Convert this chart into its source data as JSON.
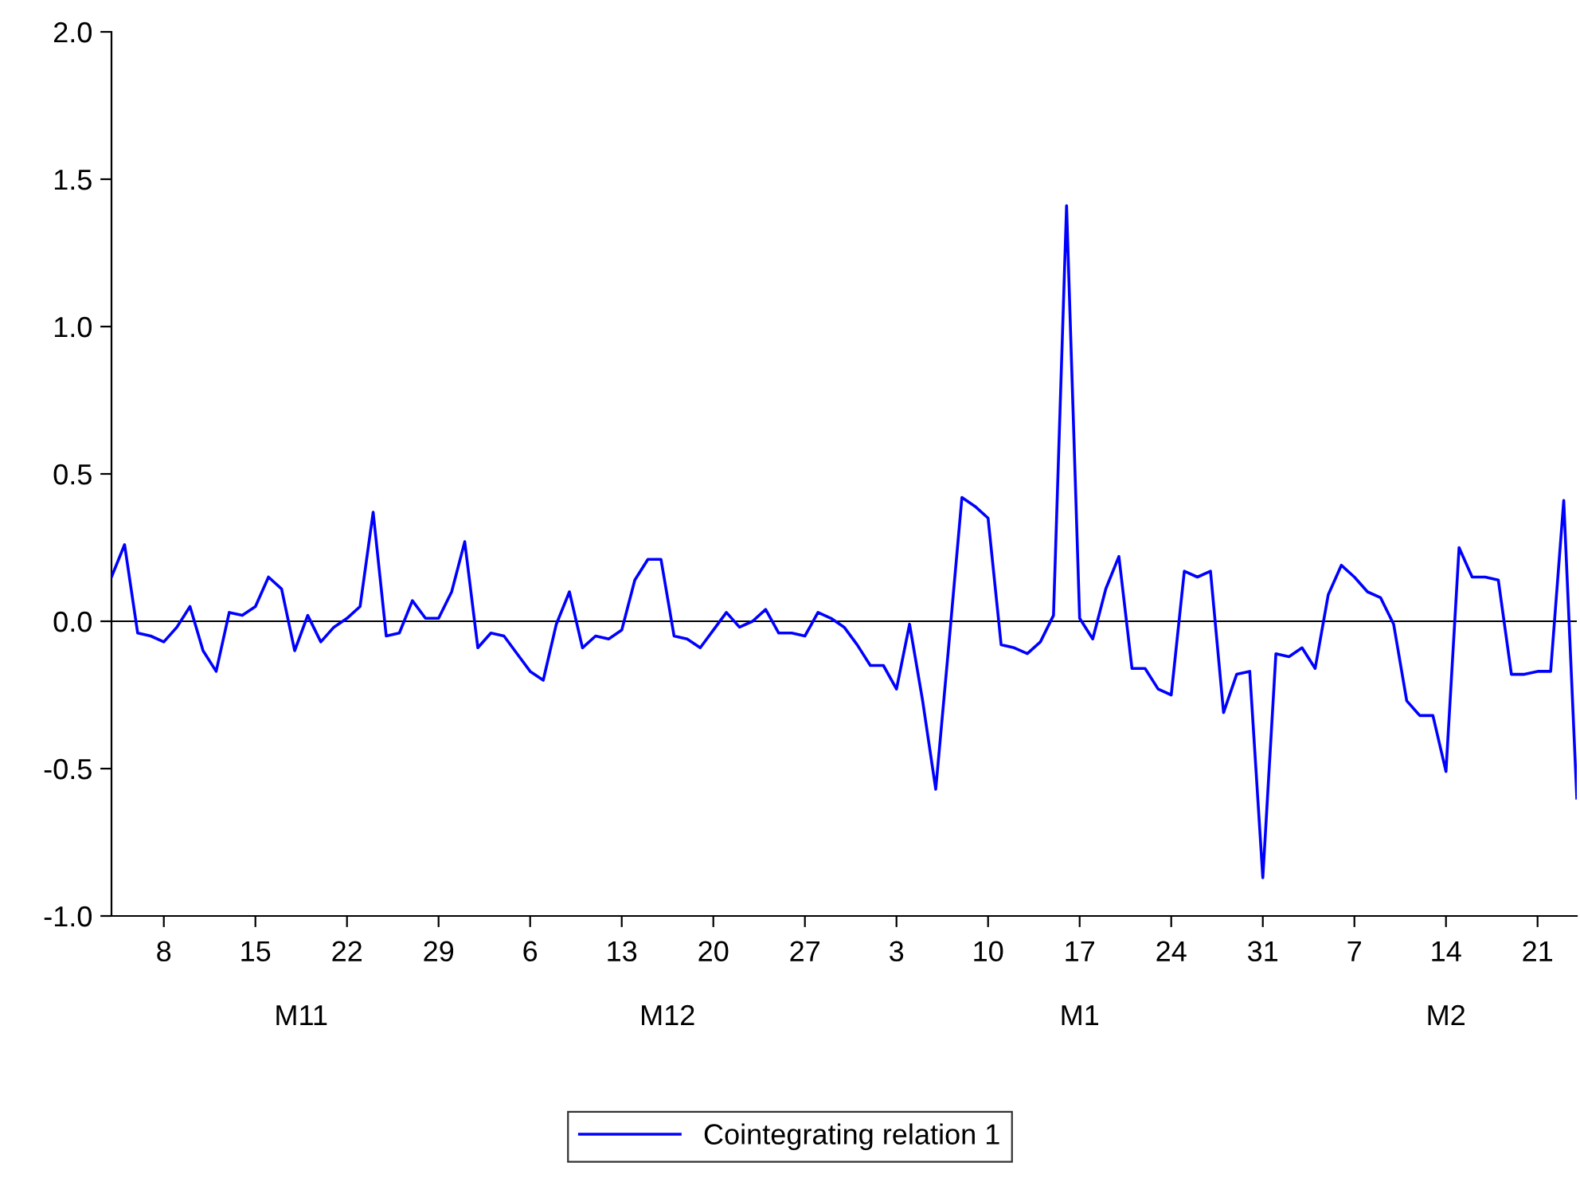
{
  "chart_data": {
    "type": "line",
    "categories": [
      null,
      null,
      null,
      null,
      "8",
      null,
      null,
      null,
      null,
      null,
      null,
      "15",
      null,
      null,
      null,
      null,
      null,
      null,
      "22",
      null,
      null,
      null,
      null,
      null,
      null,
      "29",
      null,
      null,
      null,
      null,
      null,
      null,
      "6",
      null,
      null,
      null,
      null,
      null,
      null,
      "13",
      null,
      null,
      null,
      null,
      null,
      null,
      "20",
      null,
      null,
      null,
      null,
      null,
      null,
      "27",
      null,
      null,
      null,
      null,
      null,
      null,
      "3",
      null,
      null,
      null,
      null,
      null,
      null,
      "10",
      null,
      null,
      null,
      null,
      null,
      null,
      "17",
      null,
      null,
      null,
      null,
      null,
      null,
      "24",
      null,
      null,
      null,
      null,
      null,
      null,
      "31",
      null,
      null,
      null,
      null,
      null,
      null,
      "7",
      null,
      null,
      null,
      null,
      null,
      null,
      "14",
      null,
      null,
      null,
      null,
      null,
      null,
      "21",
      null,
      null,
      null
    ],
    "series": [
      {
        "name": "Cointegrating relation 1",
        "color": "#0000ff",
        "values": [
          0.15,
          0.26,
          -0.04,
          -0.05,
          -0.07,
          -0.02,
          0.05,
          -0.1,
          -0.17,
          0.03,
          0.02,
          0.05,
          0.15,
          0.11,
          -0.1,
          0.02,
          -0.07,
          -0.02,
          0.01,
          0.05,
          0.37,
          -0.05,
          -0.04,
          0.07,
          0.01,
          0.01,
          0.1,
          0.27,
          -0.09,
          -0.04,
          -0.05,
          -0.11,
          -0.17,
          -0.2,
          -0.01,
          0.1,
          -0.09,
          -0.05,
          -0.06,
          -0.03,
          0.14,
          0.21,
          0.21,
          -0.05,
          -0.06,
          -0.09,
          -0.03,
          0.03,
          -0.02,
          0.0,
          0.04,
          -0.04,
          -0.04,
          -0.05,
          0.03,
          0.01,
          -0.02,
          -0.08,
          -0.15,
          -0.15,
          -0.23,
          -0.01,
          -0.27,
          -0.57,
          -0.08,
          0.42,
          0.39,
          0.35,
          -0.08,
          -0.09,
          -0.11,
          -0.07,
          0.02,
          1.41,
          0.01,
          -0.06,
          0.11,
          0.22,
          -0.16,
          -0.16,
          -0.23,
          -0.25,
          0.17,
          0.15,
          0.17,
          -0.31,
          -0.18,
          -0.17,
          -0.87,
          -0.11,
          -0.12,
          -0.09,
          -0.16,
          0.09,
          0.19,
          0.15,
          0.1,
          0.08,
          -0.01,
          -0.27,
          -0.32,
          -0.32,
          -0.51,
          0.25,
          0.15,
          0.15,
          0.14,
          -0.18,
          -0.18,
          -0.17,
          -0.17,
          0.41,
          -0.6
        ]
      }
    ],
    "ylim": [
      -1.0,
      2.0
    ],
    "yticks": [
      {
        "value": -1.0,
        "label": "-1.0"
      },
      {
        "value": -0.5,
        "label": "-0.5"
      },
      {
        "value": 0,
        "label": "0.0"
      },
      {
        "value": 0.5,
        "label": "0.5"
      },
      {
        "value": 1.0,
        "label": "1.0"
      },
      {
        "value": 1.5,
        "label": "1.5"
      },
      {
        "value": 2.0,
        "label": "2.0"
      }
    ],
    "ref_lines": [
      {
        "axis": "y",
        "value": 0,
        "color": "#000000"
      }
    ],
    "annotations": [
      "M11",
      "M12",
      "M1",
      "M2"
    ],
    "legend": "bottom",
    "grid": false,
    "marker": "none",
    "line_style": "solid"
  }
}
